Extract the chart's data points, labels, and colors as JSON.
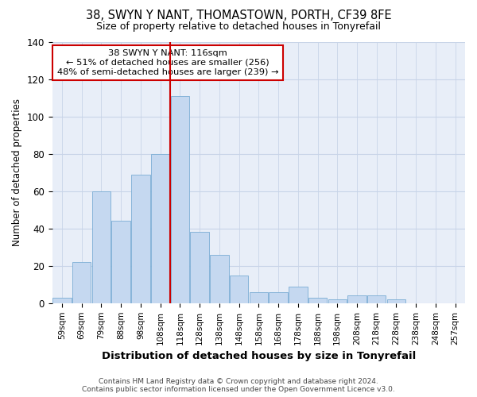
{
  "title1": "38, SWYN Y NANT, THOMASTOWN, PORTH, CF39 8FE",
  "title2": "Size of property relative to detached houses in Tonyrefail",
  "xlabel": "Distribution of detached houses by size in Tonyrefail",
  "ylabel": "Number of detached properties",
  "bar_labels": [
    "59sqm",
    "69sqm",
    "79sqm",
    "88sqm",
    "98sqm",
    "108sqm",
    "118sqm",
    "128sqm",
    "138sqm",
    "148sqm",
    "158sqm",
    "168sqm",
    "178sqm",
    "188sqm",
    "198sqm",
    "208sqm",
    "218sqm",
    "228sqm",
    "238sqm",
    "248sqm",
    "257sqm"
  ],
  "bar_values": [
    3,
    22,
    60,
    44,
    69,
    80,
    111,
    38,
    26,
    15,
    6,
    6,
    9,
    3,
    2,
    4,
    4,
    2,
    0,
    0,
    0
  ],
  "bar_color": "#c5d8f0",
  "bar_edge_color": "#7aadd4",
  "vline_color": "#cc0000",
  "annotation_box_edge_color": "#cc0000",
  "annotation_line1": "38 SWYN Y NANT: 116sqm",
  "annotation_line2": "← 51% of detached houses are smaller (256)",
  "annotation_line3": "48% of semi-detached houses are larger (239) →",
  "ylim": [
    0,
    140
  ],
  "yticks": [
    0,
    20,
    40,
    60,
    80,
    100,
    120,
    140
  ],
  "grid_color": "#c8d4e8",
  "background_color": "#e8eef8",
  "footer1": "Contains HM Land Registry data © Crown copyright and database right 2024.",
  "footer2": "Contains public sector information licensed under the Open Government Licence v3.0."
}
